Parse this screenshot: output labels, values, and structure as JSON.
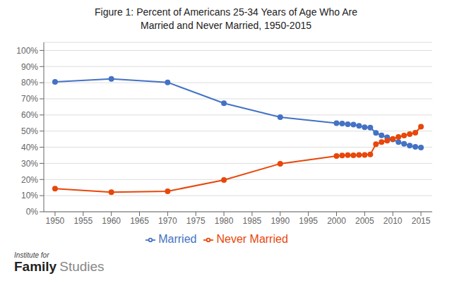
{
  "chart_data": {
    "type": "line",
    "title": "Figure 1: Percent of Americans 25-34 Years of Age Who Are\nMarried and Never Married, 1950-2015",
    "x": [
      1950,
      1960,
      1970,
      1980,
      1990,
      2000,
      2001,
      2002,
      2003,
      2004,
      2005,
      2006,
      2007,
      2008,
      2009,
      2010,
      2011,
      2012,
      2013,
      2014,
      2015
    ],
    "series": [
      {
        "name": "Married",
        "color": "#4472C4",
        "marker": "circle",
        "values": [
          0.805,
          0.824,
          0.802,
          0.673,
          0.586,
          0.549,
          0.547,
          0.543,
          0.54,
          0.533,
          0.524,
          0.522,
          0.489,
          0.474,
          0.462,
          0.448,
          0.432,
          0.421,
          0.41,
          0.402,
          0.398
        ]
      },
      {
        "name": "Never Married",
        "color": "#E8470A",
        "marker": "circle",
        "values": [
          0.143,
          0.121,
          0.127,
          0.197,
          0.298,
          0.346,
          0.349,
          0.351,
          0.35,
          0.352,
          0.352,
          0.356,
          0.419,
          0.432,
          0.441,
          0.452,
          0.464,
          0.472,
          0.481,
          0.49,
          0.527
        ]
      }
    ],
    "xlim": [
      1948,
      2017
    ],
    "xticks": [
      1950,
      1955,
      1960,
      1965,
      1970,
      1975,
      1980,
      1985,
      1990,
      1995,
      2000,
      2005,
      2010,
      2015
    ],
    "ylim": [
      0,
      1.05
    ],
    "yticks": [
      {
        "value": 0,
        "label": "0%"
      },
      {
        "value": 0.1,
        "label": "10%"
      },
      {
        "value": 0.2,
        "label": "20%"
      },
      {
        "value": 0.3,
        "label": "30%"
      },
      {
        "value": 0.4,
        "label": "40%"
      },
      {
        "value": 0.5,
        "label": "50%"
      },
      {
        "value": 0.6,
        "label": "60%"
      },
      {
        "value": 0.7,
        "label": "70%"
      },
      {
        "value": 0.8,
        "label": "80%"
      },
      {
        "value": 0.9,
        "label": "90%"
      },
      {
        "value": 1.0,
        "label": "100%"
      }
    ],
    "grid": true,
    "legend": "bottom",
    "annotations": [
      "Institute for",
      "Family",
      "Studies"
    ]
  }
}
